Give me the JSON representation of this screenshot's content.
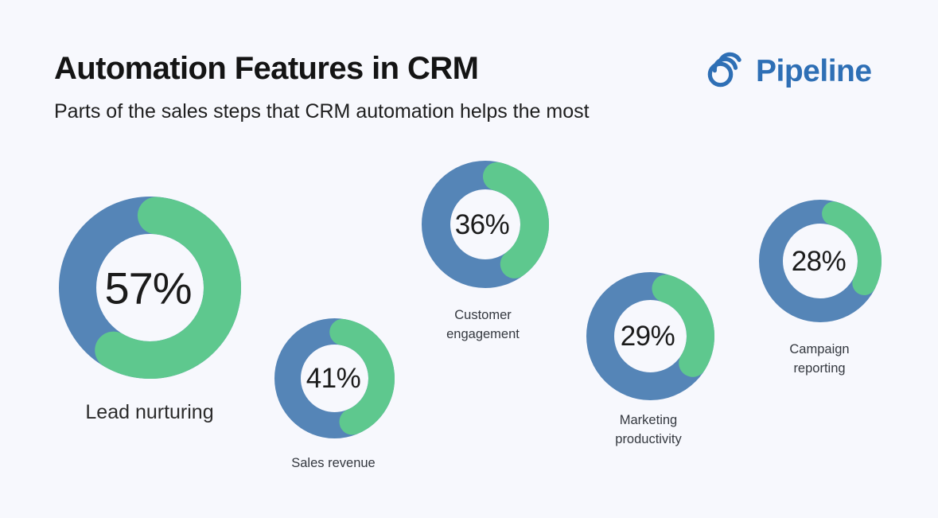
{
  "page": {
    "background": "#f7f8fd"
  },
  "header": {
    "title": "Automation Features in CRM",
    "subtitle": "Parts of the sales steps that CRM automation helps the most",
    "logo": {
      "text": "Pipeline",
      "color": "#2e6fb5",
      "icon": "spiral-swoosh-icon"
    }
  },
  "chart_data": {
    "type": "pie",
    "variant": "donut-multiples",
    "title": "Automation Features in CRM",
    "subtitle": "Parts of the sales steps that CRM automation helps the most",
    "unit": "%",
    "legend": "none",
    "series": [
      {
        "label": "Lead nurturing",
        "value": 57,
        "percent_text": "57%"
      },
      {
        "label": "Sales revenue",
        "value": 41,
        "percent_text": "41%"
      },
      {
        "label": "Customer engagement",
        "value": 36,
        "percent_text": "36%"
      },
      {
        "label": "Marketing productivity",
        "value": 29,
        "percent_text": "29%"
      },
      {
        "label": "Campaign reporting",
        "value": 28,
        "percent_text": "28%"
      }
    ],
    "colors": {
      "filled_arc": "#5ec88e",
      "remainder_arc": "#5585b7",
      "value_text": "#1b1b1b",
      "label_text": "#34383f"
    }
  }
}
